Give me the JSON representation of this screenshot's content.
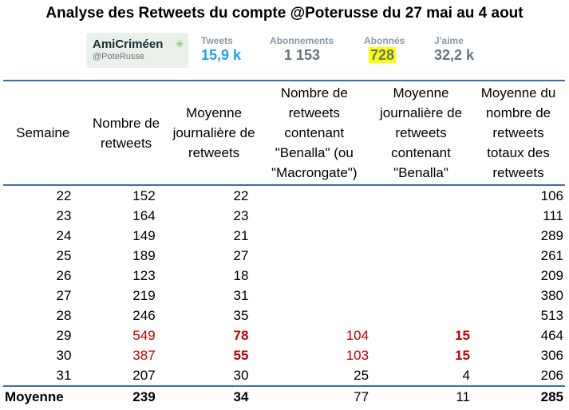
{
  "title": "Analyse des Retweets du compte @Poterusse du 27 mai au 4 aout",
  "profile": {
    "name": "AmiCriméen",
    "handle": "@PoteRusse"
  },
  "stats": [
    {
      "label": "Tweets",
      "value": "15,9 k",
      "style": "blue"
    },
    {
      "label": "Abonnements",
      "value": "1 153",
      "style": "plain"
    },
    {
      "label": "Abonnés",
      "value": "728",
      "style": "highlight"
    },
    {
      "label": "J'aime",
      "value": "32,2 k",
      "style": "plain"
    }
  ],
  "colors": {
    "rule": "#3a6cb5",
    "red": "#c00000",
    "highlight": "#ffff00",
    "twitter_blue": "#1da1f2"
  },
  "headers": [
    "Semaine",
    "Nombre de retweets",
    "Moyenne journalière de retweets",
    "Nombre de retweets contenant \"Benalla\" (ou \"Macrongate\")",
    "Moyenne journalière de retweets contenant \"Benalla\"",
    "Moyenne du nombre de retweets totaux des retweets"
  ],
  "rows": [
    {
      "week": "22",
      "retweets": "152",
      "daily": "22",
      "benalla": "",
      "benalla_daily": "",
      "avg_total": "106",
      "highlight": false
    },
    {
      "week": "23",
      "retweets": "164",
      "daily": "23",
      "benalla": "",
      "benalla_daily": "",
      "avg_total": "111",
      "highlight": false
    },
    {
      "week": "24",
      "retweets": "149",
      "daily": "21",
      "benalla": "",
      "benalla_daily": "",
      "avg_total": "289",
      "highlight": false
    },
    {
      "week": "25",
      "retweets": "189",
      "daily": "27",
      "benalla": "",
      "benalla_daily": "",
      "avg_total": "261",
      "highlight": false
    },
    {
      "week": "26",
      "retweets": "123",
      "daily": "18",
      "benalla": "",
      "benalla_daily": "",
      "avg_total": "209",
      "highlight": false
    },
    {
      "week": "27",
      "retweets": "219",
      "daily": "31",
      "benalla": "",
      "benalla_daily": "",
      "avg_total": "380",
      "highlight": false
    },
    {
      "week": "28",
      "retweets": "246",
      "daily": "35",
      "benalla": "",
      "benalla_daily": "",
      "avg_total": "513",
      "highlight": false
    },
    {
      "week": "29",
      "retweets": "549",
      "daily": "78",
      "benalla": "104",
      "benalla_daily": "15",
      "avg_total": "464",
      "highlight": true
    },
    {
      "week": "30",
      "retweets": "387",
      "daily": "55",
      "benalla": "103",
      "benalla_daily": "15",
      "avg_total": "306",
      "highlight": true
    },
    {
      "week": "31",
      "retweets": "207",
      "daily": "30",
      "benalla": "25",
      "benalla_daily": "4",
      "avg_total": "206",
      "highlight": false
    }
  ],
  "footer": {
    "label": "Moyenne",
    "retweets": "239",
    "daily": "34",
    "benalla": "77",
    "benalla_daily": "11",
    "avg_total": "285"
  }
}
